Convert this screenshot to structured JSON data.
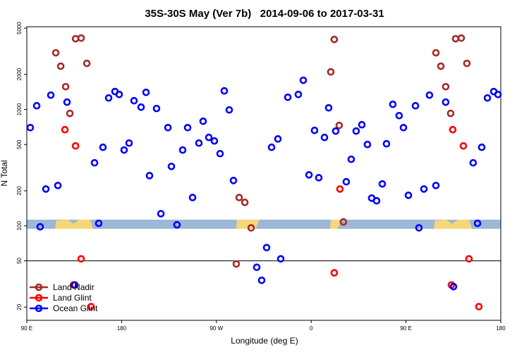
{
  "chart_data": {
    "type": "scatter",
    "title": "35S-30S May (Ver 7b)   2014-09-06 to 2017-03-31",
    "x_label": "Longitude (deg E)",
    "y_label": "N Total",
    "xlim": [
      90,
      540
    ],
    "ylim": [
      15.4,
      5140
    ],
    "log_y": true,
    "legend": "bottom-left",
    "reference_line": 50,
    "xticks": [
      {
        "value": 90,
        "label": "90 E"
      },
      180,
      {
        "value": 270,
        "label": "90 W"
      },
      {
        "value": 360,
        "label": "0"
      },
      {
        "value": 450,
        "label": "90 E"
      },
      {
        "value": 540,
        "label": "180"
      }
    ],
    "yticks": [
      20,
      50,
      100,
      200,
      500,
      1000,
      2000,
      5000
    ],
    "series": [
      {
        "name": "Land Nadir",
        "color": "#a52a2a",
        "x": [
          117.5,
          122.2,
          126.9,
          130.9,
          136.3,
          141.6,
          147.0,
          291.6,
          297.0,
          303.0,
          288.9,
          378.6,
          381.9,
          386.6,
          390.6,
          478.4,
          483.1,
          487.7,
          492.4,
          497.1,
          502.5,
          507.8
        ],
        "y": [
          3069,
          2355,
          1570,
          925,
          4055,
          4111,
          2489,
          175,
          159,
          96,
          47,
          2104,
          3999,
          729,
          108,
          3069,
          2355,
          1570,
          925,
          4055,
          4111,
          2489
        ]
      },
      {
        "name": "Land Glint",
        "color": "#ff0000",
        "x": [
          126.2,
          136.3,
          141.6,
          151.0,
          134.3,
          381.9,
          387.3,
          494.4,
          504.5,
          509.8,
          519.2,
          493.1
        ],
        "y": [
          670,
          486,
          52,
          20.2,
          31,
          39.4,
          207,
          670,
          486,
          52,
          20.2,
          31
        ]
      },
      {
        "name": "Ocean Glint",
        "color": "#0000ff",
        "x": [
          93.3,
          99.4,
          102.7,
          108.1,
          112.8,
          119.5,
          128.2,
          135.6,
          154.3,
          158.3,
          162.3,
          167.7,
          173.7,
          177.7,
          182.4,
          187.1,
          191.8,
          198.5,
          203.2,
          206.5,
          213.2,
          217.3,
          224.0,
          227.3,
          232.6,
          238.0,
          242.7,
          247.4,
          253.4,
          257.4,
          262.8,
          268.1,
          273.5,
          277.5,
          282.2,
          286.2,
          308.3,
          313.0,
          317.7,
          322.4,
          328.4,
          331.1,
          337.8,
          347.8,
          352.5,
          357.9,
          363.2,
          367.2,
          372.6,
          376.6,
          383.3,
          393.3,
          398.0,
          402.7,
          408.1,
          413.4,
          417.4,
          422.1,
          427.5,
          431.5,
          437.5,
          443.5,
          447.6,
          452.3,
          459.0,
          462.3,
          467.0,
          472.3,
          478.4,
          487.7,
          495.1,
          513.8,
          517.9,
          521.9,
          527.3,
          533.3,
          537.3
        ],
        "y": [
          698,
          1076,
          98,
          207,
          1328,
          222,
          1156,
          31,
          348,
          105,
          473,
          1256,
          1426,
          1346,
          448,
          514,
          1189,
          1047,
          1403,
          270,
          1019,
          127,
          698,
          324,
          102,
          448,
          698,
          175,
          514,
          792,
          575,
          536,
          417,
          1445,
          991,
          245,
          44,
          34,
          65,
          473,
          558,
          52,
          1273,
          1346,
          1782,
          274,
          661,
          259,
          575,
          1033,
          652,
          239,
          373,
          652,
          739,
          500,
          173,
          164,
          229,
          507,
          1107,
          885,
          698,
          183,
          1076,
          96,
          207,
          1328,
          222,
          1156,
          30,
          348,
          105,
          473,
          1256,
          1426,
          1346
        ]
      }
    ]
  }
}
